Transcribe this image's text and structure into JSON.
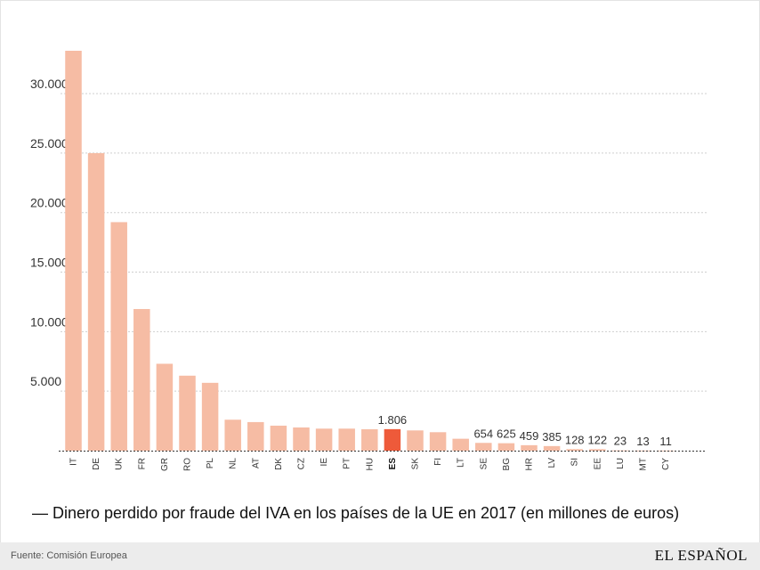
{
  "chart_data": {
    "type": "bar",
    "categories": [
      "IT",
      "DE",
      "UK",
      "FR",
      "GR",
      "RO",
      "PL",
      "NL",
      "AT",
      "DK",
      "CZ",
      "IE",
      "PT",
      "HU",
      "ES",
      "SK",
      "FI",
      "LT",
      "SE",
      "BG",
      "HR",
      "LV",
      "SI",
      "EE",
      "LU",
      "MT",
      "CY"
    ],
    "values": [
      33600,
      25000,
      19200,
      11900,
      7300,
      6300,
      5700,
      2600,
      2400,
      2100,
      1950,
      1850,
      1850,
      1800,
      1806,
      1700,
      1550,
      1000,
      654,
      625,
      459,
      385,
      128,
      122,
      23,
      13,
      11
    ],
    "data_labels": [
      "",
      "",
      "",
      "",
      "",
      "",
      "",
      "",
      "",
      "",
      "",
      "",
      "",
      "",
      "1.806",
      "",
      "",
      "",
      "654",
      "625",
      "459",
      "385",
      "128",
      "122",
      "23",
      "13",
      "11"
    ],
    "highlight": "ES",
    "yticks": [
      5000,
      10000,
      15000,
      20000,
      25000,
      30000
    ],
    "ytick_labels": [
      "5.000",
      "10.000",
      "15.000",
      "20.000",
      "25.000",
      "30.000"
    ],
    "ylim": [
      0,
      33600
    ],
    "grid": true,
    "colors": {
      "bar": "#f6bca4",
      "highlight": "#ee5a3a",
      "grid": "#cfcfcf"
    }
  },
  "legend": "— Dinero perdido por fraude del IVA en los países de la UE en 2017 (en millones de euros)",
  "footer": {
    "source": "Fuente: Comisión Europea",
    "brand": "EL ESPAÑOL"
  }
}
